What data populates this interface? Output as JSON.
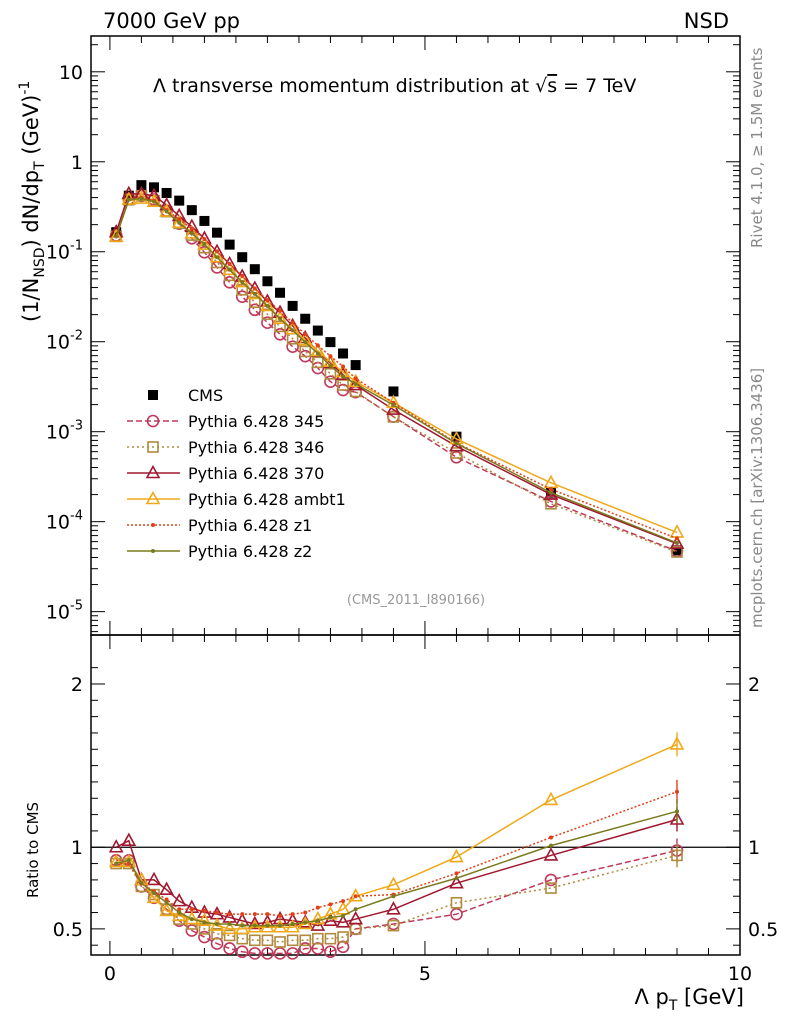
{
  "header": {
    "left": "7000 GeV pp",
    "right": "NSD"
  },
  "side": {
    "top": "Rivet 4.1.0, ≥ 1.5M events",
    "bottom": "mcplots.cern.ch [arXiv:1306.3436]"
  },
  "title": {
    "prefix": "Λ transverse momentum distribution at ",
    "sqrt": "√",
    "s": "s",
    "suffix": " = 7 TeV"
  },
  "analysis_label": "(CMS_2011_I890166)",
  "axes": {
    "ylabel_main": "(1/N_NSD) dN/dp_T (GeV)^-1",
    "ylabel_ratio": "Ratio to CMS",
    "xlabel": "Λ p_T [GeV]"
  },
  "chart_data": [
    {
      "type": "scatter",
      "panel": "main",
      "yscale": "log",
      "xlim": [
        -0.3,
        10.0
      ],
      "ylim": [
        5.5e-06,
        25
      ],
      "x_ticks": [
        0,
        5,
        10
      ],
      "y_tick_labels": [
        "10",
        "1",
        "10^-1",
        "10^-2",
        "10^-3",
        "10^-4",
        "10^-5"
      ],
      "y_tick_values": [
        10,
        1,
        0.1,
        0.01,
        0.001,
        0.0001,
        1e-05
      ],
      "legend_position": "middle-left",
      "x": [
        0.1,
        0.3,
        0.5,
        0.7,
        0.9,
        1.1,
        1.3,
        1.5,
        1.7,
        1.9,
        2.1,
        2.3,
        2.5,
        2.7,
        2.9,
        3.1,
        3.3,
        3.5,
        3.7,
        3.9,
        4.5,
        5.5,
        7.0,
        9.0
      ],
      "series": [
        {
          "name": "CMS",
          "style": "cms",
          "color": "#000000",
          "values": [
            0.165,
            0.42,
            0.55,
            0.52,
            0.45,
            0.37,
            0.29,
            0.22,
            0.163,
            0.12,
            0.087,
            0.064,
            0.047,
            0.035,
            0.025,
            0.018,
            0.0133,
            0.0099,
            0.0074,
            0.0055,
            0.0028,
            0.00088,
            0.00021,
            4.8e-05
          ],
          "ratio": []
        },
        {
          "name": "Pythia 6.428 345",
          "style": "circle",
          "color": "#c0395a",
          "dash": "6,3",
          "values": [
            0.152,
            0.386,
            0.418,
            0.382,
            0.286,
            0.205,
            0.141,
            0.0985,
            0.067,
            0.0457,
            0.0317,
            0.0226,
            0.0163,
            0.0121,
            0.0088,
            0.0069,
            0.0051,
            0.0036,
            0.0029,
            0.00275,
            0.00147,
            0.00052,
            0.000168,
            4.7e-05
          ],
          "ratio": [
            0.92,
            0.92,
            0.76,
            0.69,
            0.62,
            0.55,
            0.49,
            0.45,
            0.41,
            0.38,
            0.36,
            0.35,
            0.35,
            0.35,
            0.35,
            0.38,
            0.38,
            0.36,
            0.39,
            0.5,
            0.53,
            0.59,
            0.8,
            0.98
          ]
        },
        {
          "name": "Pythia 6.428 346",
          "style": "square",
          "color": "#b08a3e",
          "dash": "2,3",
          "values": [
            0.148,
            0.378,
            0.418,
            0.369,
            0.279,
            0.207,
            0.153,
            0.111,
            0.076,
            0.0546,
            0.0378,
            0.0275,
            0.0202,
            0.0148,
            0.0108,
            0.0078,
            0.0059,
            0.0044,
            0.0033,
            0.0028,
            0.00146,
            0.00058,
            0.000158,
            4.6e-05
          ],
          "ratio": [
            0.9,
            0.9,
            0.76,
            0.71,
            0.62,
            0.56,
            0.53,
            0.5,
            0.47,
            0.46,
            0.44,
            0.43,
            0.43,
            0.42,
            0.43,
            0.43,
            0.44,
            0.44,
            0.45,
            0.5,
            0.52,
            0.66,
            0.75,
            0.95
          ]
        },
        {
          "name": "Pythia 6.428 370",
          "style": "triangle",
          "color": "#a01830",
          "dash": "",
          "values": [
            0.165,
            0.44,
            0.44,
            0.42,
            0.33,
            0.25,
            0.19,
            0.14,
            0.1,
            0.073,
            0.053,
            0.039,
            0.028,
            0.021,
            0.015,
            0.011,
            0.0078,
            0.0058,
            0.0043,
            0.0033,
            0.00176,
            0.00069,
            0.0002,
            5.7e-05
          ],
          "ratio": [
            1.0,
            1.04,
            0.8,
            0.8,
            0.74,
            0.67,
            0.63,
            0.6,
            0.59,
            0.57,
            0.55,
            0.53,
            0.54,
            0.56,
            0.55,
            0.54,
            0.52,
            0.55,
            0.54,
            0.56,
            0.62,
            0.78,
            0.95,
            1.17
          ]
        },
        {
          "name": "Pythia 6.428 ambt1",
          "style": "triangle",
          "color": "#f0a818",
          "dash": "",
          "values": [
            0.147,
            0.38,
            0.39,
            0.36,
            0.28,
            0.21,
            0.16,
            0.12,
            0.087,
            0.063,
            0.046,
            0.034,
            0.025,
            0.018,
            0.0138,
            0.0104,
            0.0079,
            0.006,
            0.0046,
            0.0036,
            0.0021,
            0.00083,
            0.00027,
            7.6e-05
          ],
          "ratio": [
            0.91,
            0.91,
            0.8,
            0.69,
            0.61,
            0.58,
            0.56,
            0.55,
            0.52,
            0.5,
            0.5,
            0.51,
            0.51,
            0.51,
            0.51,
            0.53,
            0.56,
            0.59,
            0.62,
            0.7,
            0.77,
            0.94,
            1.29,
            1.63
          ]
        },
        {
          "name": "Pythia 6.428 z1",
          "style": "dot",
          "color": "#e0401a",
          "dash": "2,2",
          "values": [
            0.148,
            0.38,
            0.4,
            0.37,
            0.29,
            0.23,
            0.18,
            0.138,
            0.101,
            0.073,
            0.054,
            0.039,
            0.029,
            0.022,
            0.0163,
            0.0121,
            0.0091,
            0.0069,
            0.0053,
            0.0039,
            0.0021,
            0.00075,
            0.00023,
            6.5e-05
          ],
          "ratio": [
            0.9,
            0.9,
            0.78,
            0.73,
            0.68,
            0.62,
            0.62,
            0.61,
            0.6,
            0.59,
            0.59,
            0.59,
            0.59,
            0.58,
            0.59,
            0.6,
            0.63,
            0.65,
            0.67,
            0.7,
            0.71,
            0.84,
            1.06,
            1.34
          ]
        },
        {
          "name": "Pythia 6.428 z2",
          "style": "dot",
          "color": "#7a7a1e",
          "dash": "",
          "values": [
            0.148,
            0.38,
            0.39,
            0.36,
            0.28,
            0.21,
            0.16,
            0.121,
            0.087,
            0.063,
            0.046,
            0.034,
            0.025,
            0.018,
            0.0134,
            0.0099,
            0.0074,
            0.0054,
            0.0041,
            0.0034,
            0.00198,
            0.00074,
            0.00021,
            5.8e-05
          ],
          "ratio": [
            0.9,
            0.92,
            0.78,
            0.72,
            0.66,
            0.6,
            0.56,
            0.54,
            0.53,
            0.53,
            0.52,
            0.52,
            0.52,
            0.52,
            0.53,
            0.54,
            0.55,
            0.57,
            0.58,
            0.62,
            0.7,
            0.81,
            1.01,
            1.22
          ]
        }
      ]
    },
    {
      "type": "line",
      "panel": "ratio",
      "xlim": [
        -0.3,
        10.0
      ],
      "ylim": [
        0.34,
        2.3
      ],
      "y_tick_labels": [
        "2",
        "1",
        "0.5"
      ],
      "y_tick_values": [
        2,
        1,
        0.5
      ],
      "x_tick_labels": [
        "0",
        "5",
        "10"
      ],
      "reference_line": 1
    }
  ]
}
